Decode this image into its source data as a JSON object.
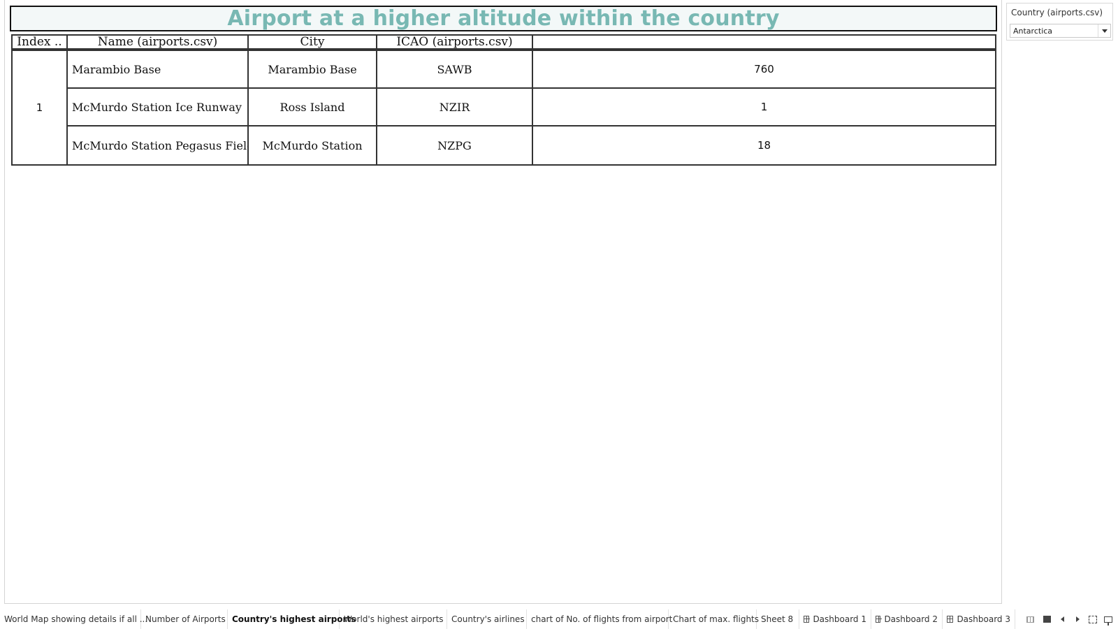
{
  "worksheet": {
    "title": "Airport at a higher altitude within the country"
  },
  "table": {
    "headers": [
      "Index ..",
      "Name (airports.csv)",
      "City",
      "ICAO (airports.csv)",
      ""
    ],
    "index_value": "1",
    "rows": [
      {
        "name": "Marambio Base",
        "city": "Marambio Base",
        "icao": "SAWB",
        "value": "760"
      },
      {
        "name": "McMurdo Station Ice Runway",
        "city": "Ross Island",
        "icao": "NZIR",
        "value": "1"
      },
      {
        "name": "McMurdo Station Pegasus Field",
        "city": "McMurdo Station",
        "icao": "NZPG",
        "value": "18"
      }
    ]
  },
  "filter": {
    "label": "Country (airports.csv)",
    "selected": "Antarctica",
    "arrow_icon": "chevron-down-icon"
  },
  "tabs": [
    {
      "label": "World Map showing details if all ...",
      "active": false
    },
    {
      "label": "Number of Airports",
      "active": false
    },
    {
      "label": "Country's highest airports",
      "active": true
    },
    {
      "label": "World's highest airports",
      "active": false
    },
    {
      "label": "Country's airlines",
      "active": false
    },
    {
      "label": "chart of No. of flights from airport",
      "active": false
    },
    {
      "label": "Chart of max. flights",
      "active": false
    },
    {
      "label": "Sheet 8",
      "active": false
    },
    {
      "label": "Dashboard 1",
      "active": false,
      "icon": "dashboard-icon"
    },
    {
      "label": "Dashboard 2",
      "active": false,
      "icon": "dashboard-icon"
    },
    {
      "label": "Dashboard 3",
      "active": false,
      "icon": "dashboard-icon"
    }
  ],
  "controls": {
    "icons": [
      "show-filmstrip-icon",
      "show-tabs-icon",
      "scroll-tabs-left-icon",
      "scroll-tabs-right-icon",
      "full-screen-icon",
      "presentation-mode-icon"
    ]
  }
}
